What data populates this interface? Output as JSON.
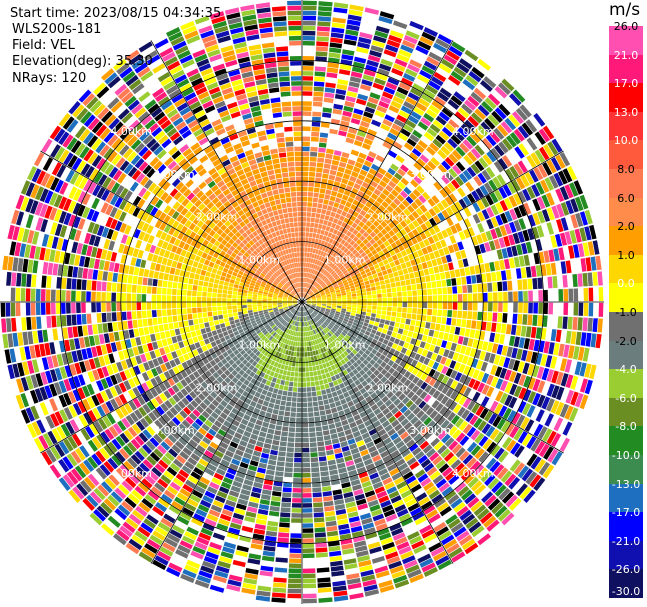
{
  "header": {
    "start_time": "Start time: 2023/08/15 04:34:35",
    "instrument": "WLS200s-181",
    "field": "Field: VEL",
    "elevation": "Elevation(deg): 35.30",
    "nrays": "NRays: 120"
  },
  "colorbar": {
    "unit": "m/s",
    "ticks": [
      "26.0",
      "21.0",
      "17.0",
      "13.0",
      "10.0",
      "8.0",
      "6.0",
      "2.0",
      "1.0",
      "0.0",
      "-1.0",
      "-2.0",
      "-4.0",
      "-6.0",
      "-8.0",
      "-10.0",
      "-13.0",
      "-17.0",
      "-21.0",
      "-26.0",
      "-30.0"
    ],
    "colors": [
      "#ff4fb0",
      "#ff1a7a",
      "#ff0000",
      "#ff3333",
      "#ff5a3c",
      "#ff7a50",
      "#ff8c4a",
      "#ff9e00",
      "#ffd700",
      "#ffff00",
      "#707070",
      "#6b7d7d",
      "#9acd32",
      "#6b8e23",
      "#228b22",
      "#3c8c50",
      "#1e6fbf",
      "#0000ff",
      "#1010b0",
      "#101060",
      "#0a0a3a"
    ]
  },
  "chart_data": {
    "type": "heatmap",
    "subtype": "PPI polar scan",
    "field": "VEL",
    "units": "m/s",
    "nrays": 120,
    "range_ring_labels": [
      "1.00km",
      "2.00km",
      "3.00km",
      "4.00km"
    ],
    "range_rings_km": [
      1,
      2,
      3,
      4
    ],
    "max_range_km": 5,
    "azimuth_lines_deg": [
      0,
      30,
      60,
      90,
      120,
      150,
      180,
      210,
      240,
      270,
      300,
      330
    ],
    "value_range": [
      -30,
      26
    ],
    "pattern": "positive velocities (yellow/orange) in the northern half, negative velocities (green) in the southern half, noisy random velocities beyond ~3 km"
  }
}
